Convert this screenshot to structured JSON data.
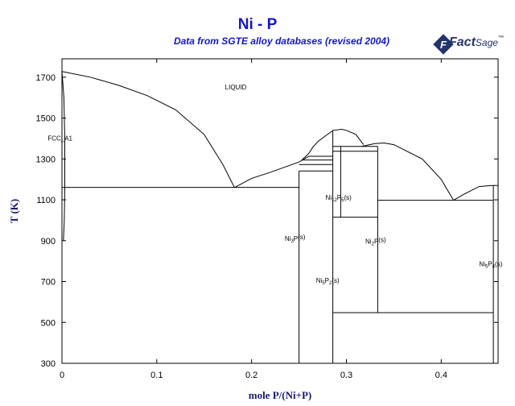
{
  "title": "Ni - P",
  "subtitle": "Data from SGTE alloy databases (revised 2004)",
  "logo": {
    "text": "Fact",
    "suffix": "Sage",
    "mark": "™"
  },
  "chart_data": {
    "type": "line",
    "xlabel": "mole P/(Ni+P)",
    "ylabel": "T (K)",
    "xlim": [
      0,
      0.46
    ],
    "ylim": [
      300,
      1790
    ],
    "xticks": [
      0,
      0.1,
      0.2,
      0.3,
      0.4
    ],
    "xtick_labels": [
      "0",
      "0.1",
      "0.2",
      "0.3",
      "0.4"
    ],
    "yticks": [
      300,
      500,
      700,
      900,
      1100,
      1300,
      1500,
      1700
    ],
    "ytick_labels": [
      "300",
      "500",
      "700",
      "900",
      "1100",
      "1300",
      "1500",
      "1700"
    ],
    "grid": false,
    "lines": [
      {
        "id": "liquidus-1",
        "points": [
          [
            0.0,
            1728
          ],
          [
            0.03,
            1700
          ],
          [
            0.06,
            1660
          ],
          [
            0.09,
            1610
          ],
          [
            0.12,
            1540
          ],
          [
            0.15,
            1420
          ],
          [
            0.17,
            1270
          ],
          [
            0.182,
            1160
          ]
        ]
      },
      {
        "id": "liquidus-2",
        "points": [
          [
            0.182,
            1160
          ],
          [
            0.2,
            1205
          ],
          [
            0.22,
            1235
          ],
          [
            0.25,
            1285
          ],
          [
            0.2605,
            1313
          ]
        ]
      },
      {
        "id": "liquidus-3",
        "points": [
          [
            0.253,
            1295
          ],
          [
            0.26,
            1325
          ],
          [
            0.265,
            1360
          ],
          [
            0.27,
            1385
          ],
          [
            0.28,
            1420
          ],
          [
            0.286,
            1440
          ],
          [
            0.295,
            1445
          ],
          [
            0.3,
            1440
          ],
          [
            0.31,
            1420
          ],
          [
            0.318,
            1370
          ]
        ]
      },
      {
        "id": "liquidus-4",
        "points": [
          [
            0.316,
            1361
          ],
          [
            0.33,
            1375
          ],
          [
            0.34,
            1378
          ],
          [
            0.35,
            1370
          ],
          [
            0.38,
            1300
          ],
          [
            0.4,
            1200
          ],
          [
            0.413,
            1098
          ]
        ]
      },
      {
        "id": "liquidus-5",
        "points": [
          [
            0.413,
            1098
          ],
          [
            0.425,
            1130
          ],
          [
            0.44,
            1165
          ],
          [
            0.453,
            1170
          ],
          [
            0.46,
            1170
          ]
        ]
      },
      {
        "id": "fcc-solvus",
        "points": [
          [
            0.0,
            1728
          ],
          [
            0.002,
            1600
          ],
          [
            0.003,
            1400
          ],
          [
            0.003,
            1161
          ],
          [
            0.0025,
            1000
          ],
          [
            0.0015,
            900
          ]
        ]
      },
      {
        "id": "eutectic-1161",
        "points": [
          [
            0.0,
            1161
          ],
          [
            0.25,
            1161
          ]
        ]
      },
      {
        "id": "ni3p-line",
        "points": [
          [
            0.25,
            1241
          ],
          [
            0.25,
            300
          ]
        ]
      },
      {
        "id": "peritectic-1241",
        "points": [
          [
            0.25,
            1241
          ],
          [
            0.286,
            1241
          ]
        ]
      },
      {
        "id": "line-1273",
        "points": [
          [
            0.25,
            1273
          ],
          [
            0.286,
            1273
          ]
        ]
      },
      {
        "id": "line-1295",
        "points": [
          [
            0.253,
            1295
          ],
          [
            0.286,
            1295
          ]
        ]
      },
      {
        "id": "line-1313",
        "points": [
          [
            0.26,
            1313
          ],
          [
            0.286,
            1313
          ]
        ]
      },
      {
        "id": "ni5p2-line",
        "points": [
          [
            0.2857,
            1440
          ],
          [
            0.2857,
            300
          ]
        ]
      },
      {
        "id": "ni12p5-line",
        "points": [
          [
            0.294,
            1361
          ],
          [
            0.294,
            1015
          ]
        ]
      },
      {
        "id": "line-1361",
        "points": [
          [
            0.2857,
            1361
          ],
          [
            0.333,
            1361
          ]
        ]
      },
      {
        "id": "line-1338",
        "points": [
          [
            0.2857,
            1338
          ],
          [
            0.333,
            1338
          ]
        ]
      },
      {
        "id": "line-1015",
        "points": [
          [
            0.2857,
            1015
          ],
          [
            0.333,
            1015
          ]
        ]
      },
      {
        "id": "ni2p-line",
        "points": [
          [
            0.333,
            1361
          ],
          [
            0.333,
            548
          ]
        ]
      },
      {
        "id": "eutectic-1098",
        "points": [
          [
            0.333,
            1098
          ],
          [
            0.455,
            1098
          ]
        ]
      },
      {
        "id": "line-548",
        "points": [
          [
            0.2857,
            548
          ],
          [
            0.455,
            548
          ]
        ]
      },
      {
        "id": "ni5p4-line",
        "points": [
          [
            0.455,
            1170
          ],
          [
            0.455,
            300
          ]
        ]
      }
    ],
    "phase_labels": [
      {
        "name": "LIQUID",
        "x": 0.172,
        "y": 1640
      },
      {
        "name": "FCC_A1",
        "x": -0.015,
        "y": 1390
      },
      {
        "name": "Ni3P(s)",
        "base": "Ni",
        "sub1": "3",
        "mid": "P",
        "sub2": "",
        "tail": "(s)",
        "x": 0.235,
        "y": 900
      },
      {
        "name": "Ni12P5(s)",
        "base": "Ni",
        "sub1": "12",
        "mid": "P",
        "sub2": "5",
        "tail": "(s)",
        "x": 0.278,
        "y": 1100
      },
      {
        "name": "Ni5P2(s)",
        "base": "Ni",
        "sub1": "5",
        "mid": "P",
        "sub2": "2",
        "tail": "(s)",
        "x": 0.268,
        "y": 695
      },
      {
        "name": "Ni2P(s)",
        "base": "Ni",
        "sub1": "2",
        "mid": "P",
        "sub2": "",
        "tail": "(s)",
        "x": 0.32,
        "y": 885
      },
      {
        "name": "Ni5P4(s)",
        "base": "Ni",
        "sub1": "5",
        "mid": "P",
        "sub2": "4",
        "tail": "(s)",
        "x": 0.44,
        "y": 775
      }
    ]
  }
}
